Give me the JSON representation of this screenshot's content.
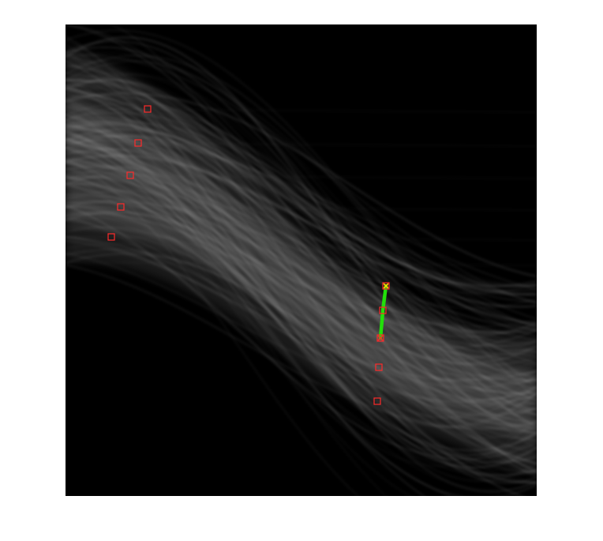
{
  "figure": {
    "background_color": "#ffffff",
    "plot_background": "#000000",
    "band_color": "#ffffff",
    "marker_color": "#ff2a2a",
    "highlight_color": "#22e00a",
    "endpoint_color": "#ffd000"
  },
  "peaks": {
    "left_group_count": 5,
    "right_group_count": 5,
    "highlighted_segments": 2
  }
}
